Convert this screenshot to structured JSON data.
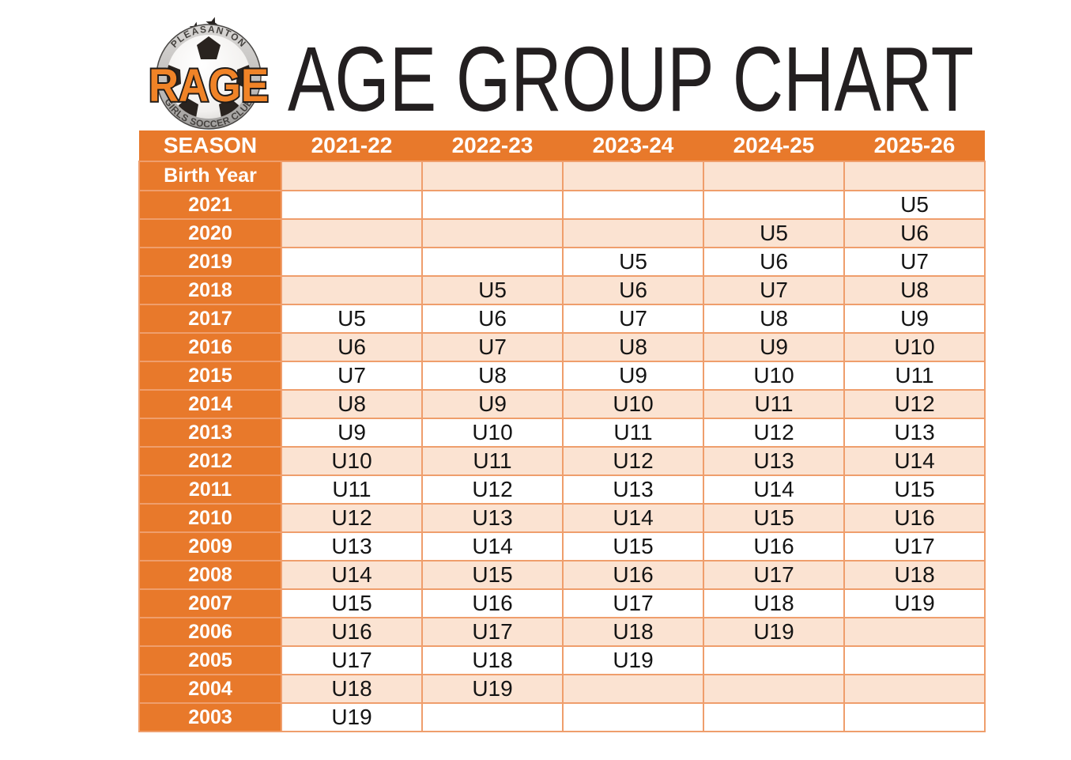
{
  "logo": {
    "club_top": "PLEASANTON",
    "name": "RAGE",
    "club_bottom": "GIRLS SOCCER CLUB"
  },
  "title": "AGE GROUP CHART",
  "table": {
    "season_header": "SEASON",
    "seasons": [
      "2021-22",
      "2022-23",
      "2023-24",
      "2024-25",
      "2025-26"
    ],
    "birth_year_label": "Birth Year",
    "rows": [
      {
        "year": "2021",
        "cells": [
          "",
          "",
          "",
          "",
          "U5"
        ]
      },
      {
        "year": "2020",
        "cells": [
          "",
          "",
          "",
          "U5",
          "U6"
        ]
      },
      {
        "year": "2019",
        "cells": [
          "",
          "",
          "U5",
          "U6",
          "U7"
        ]
      },
      {
        "year": "2018",
        "cells": [
          "",
          "U5",
          "U6",
          "U7",
          "U8"
        ]
      },
      {
        "year": "2017",
        "cells": [
          "U5",
          "U6",
          "U7",
          "U8",
          "U9"
        ]
      },
      {
        "year": "2016",
        "cells": [
          "U6",
          "U7",
          "U8",
          "U9",
          "U10"
        ]
      },
      {
        "year": "2015",
        "cells": [
          "U7",
          "U8",
          "U9",
          "U10",
          "U11"
        ]
      },
      {
        "year": "2014",
        "cells": [
          "U8",
          "U9",
          "U10",
          "U11",
          "U12"
        ]
      },
      {
        "year": "2013",
        "cells": [
          "U9",
          "U10",
          "U11",
          "U12",
          "U13"
        ]
      },
      {
        "year": "2012",
        "cells": [
          "U10",
          "U11",
          "U12",
          "U13",
          "U14"
        ]
      },
      {
        "year": "2011",
        "cells": [
          "U11",
          "U12",
          "U13",
          "U14",
          "U15"
        ]
      },
      {
        "year": "2010",
        "cells": [
          "U12",
          "U13",
          "U14",
          "U15",
          "U16"
        ]
      },
      {
        "year": "2009",
        "cells": [
          "U13",
          "U14",
          "U15",
          "U16",
          "U17"
        ]
      },
      {
        "year": "2008",
        "cells": [
          "U14",
          "U15",
          "U16",
          "U17",
          "U18"
        ]
      },
      {
        "year": "2007",
        "cells": [
          "U15",
          "U16",
          "U17",
          "U18",
          "U19"
        ]
      },
      {
        "year": "2006",
        "cells": [
          "U16",
          "U17",
          "U18",
          "U19",
          ""
        ]
      },
      {
        "year": "2005",
        "cells": [
          "U17",
          "U18",
          "U19",
          "",
          ""
        ]
      },
      {
        "year": "2004",
        "cells": [
          "U18",
          "U19",
          "",
          "",
          ""
        ]
      },
      {
        "year": "2003",
        "cells": [
          "U19",
          "",
          "",
          "",
          ""
        ]
      }
    ]
  },
  "colors": {
    "header_orange": "#E8792B",
    "stripe_peach": "#FBE3D2",
    "stripe_white": "#FFFFFF",
    "cell_border": "#EF9E6C",
    "title_color": "#231F20",
    "logo_orange": "#F08327",
    "logo_ring_silver": "#C9C7C5",
    "logo_outline": "#1E1A18"
  }
}
